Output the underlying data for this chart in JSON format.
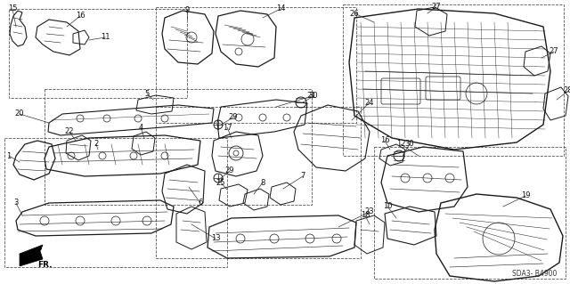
{
  "bg_color": "#ffffff",
  "fig_width": 6.4,
  "fig_height": 3.19,
  "dpi": 100,
  "diagram_code": "SDA3- B4900",
  "line_color": "#1a1a1a",
  "label_fontsize": 6.0,
  "leader_color": "#333333"
}
